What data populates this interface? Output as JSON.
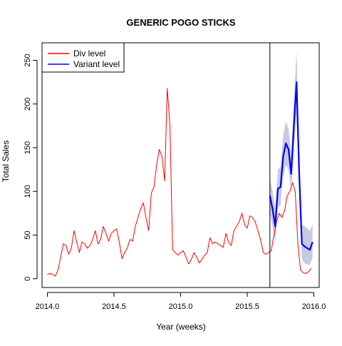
{
  "chart_data": {
    "type": "line",
    "title": "GENERIC POGO STICKS",
    "xlabel": "Year (weeks)",
    "ylabel": "Total Sales",
    "xlim": [
      2013.96,
      2016.04
    ],
    "ylim": [
      -10,
      270
    ],
    "x_ticks": [
      2014.0,
      2014.5,
      2015.0,
      2015.5,
      2016.0
    ],
    "x_tick_labels": [
      "2014.0",
      "2014.5",
      "2015.0",
      "2015.5",
      "2016.0"
    ],
    "y_ticks": [
      0,
      50,
      100,
      150,
      200,
      250
    ],
    "y_tick_labels": [
      "0",
      "50",
      "100",
      "150",
      "200",
      "250"
    ],
    "grid": false,
    "legend_position": "top-left",
    "vertical_line_x": 2015.67,
    "series": [
      {
        "name": "Div level",
        "color": "#ff0000",
        "x": [
          2014.0,
          2014.02,
          2014.04,
          2014.06,
          2014.08,
          2014.1,
          2014.12,
          2014.14,
          2014.16,
          2014.18,
          2014.2,
          2014.22,
          2014.24,
          2014.26,
          2014.28,
          2014.3,
          2014.32,
          2014.34,
          2014.36,
          2014.38,
          2014.4,
          2014.42,
          2014.44,
          2014.46,
          2014.48,
          2014.5,
          2014.52,
          2014.54,
          2014.56,
          2014.58,
          2014.6,
          2014.62,
          2014.64,
          2014.66,
          2014.68,
          2014.7,
          2014.72,
          2014.74,
          2014.76,
          2014.78,
          2014.8,
          2014.82,
          2014.84,
          2014.86,
          2014.88,
          2014.9,
          2014.92,
          2014.94,
          2014.96,
          2014.98,
          2015.0,
          2015.02,
          2015.04,
          2015.06,
          2015.08,
          2015.1,
          2015.12,
          2015.14,
          2015.16,
          2015.18,
          2015.2,
          2015.22,
          2015.24,
          2015.26,
          2015.28,
          2015.3,
          2015.32,
          2015.34,
          2015.36,
          2015.38,
          2015.4,
          2015.42,
          2015.44,
          2015.46,
          2015.48,
          2015.5,
          2015.52,
          2015.54,
          2015.56,
          2015.58,
          2015.6,
          2015.62,
          2015.64,
          2015.66,
          2015.68,
          2015.7,
          2015.72,
          2015.74,
          2015.76,
          2015.78,
          2015.8,
          2015.82,
          2015.84,
          2015.86,
          2015.88,
          2015.9,
          2015.92,
          2015.94,
          2015.96,
          2015.98
        ],
        "values": [
          5,
          6,
          5,
          3,
          10,
          25,
          40,
          38,
          28,
          35,
          55,
          42,
          30,
          42,
          40,
          35,
          38,
          45,
          55,
          40,
          45,
          60,
          52,
          43,
          52,
          55,
          57,
          42,
          23,
          30,
          35,
          45,
          43,
          60,
          70,
          80,
          87,
          70,
          55,
          98,
          105,
          130,
          148,
          140,
          112,
          218,
          175,
          33,
          30,
          27,
          30,
          32,
          25,
          17,
          22,
          30,
          25,
          18,
          22,
          27,
          30,
          47,
          40,
          42,
          40,
          38,
          36,
          52,
          42,
          38,
          55,
          60,
          65,
          75,
          62,
          58,
          72,
          70,
          65,
          55,
          45,
          30,
          28,
          30,
          32,
          50,
          65,
          75,
          70,
          78,
          95,
          100,
          110,
          100,
          40,
          10,
          7,
          6,
          8,
          12
        ]
      },
      {
        "name": "Variant level",
        "color": "#0000ff",
        "x": [
          2015.67,
          2015.69,
          2015.71,
          2015.73,
          2015.75,
          2015.77,
          2015.79,
          2015.81,
          2015.83,
          2015.85,
          2015.87,
          2015.89,
          2015.91,
          2015.93,
          2015.95,
          2015.97,
          2015.99
        ],
        "values": [
          95,
          80,
          60,
          103,
          105,
          140,
          155,
          148,
          120,
          175,
          225,
          120,
          40,
          37,
          35,
          33,
          42
        ],
        "band_lower": [
          75,
          60,
          42,
          82,
          84,
          118,
          130,
          124,
          100,
          148,
          190,
          100,
          22,
          18,
          16,
          16,
          24
        ],
        "band_upper": [
          115,
          100,
          80,
          125,
          128,
          165,
          180,
          172,
          142,
          205,
          260,
          145,
          62,
          60,
          58,
          55,
          62
        ]
      }
    ]
  }
}
